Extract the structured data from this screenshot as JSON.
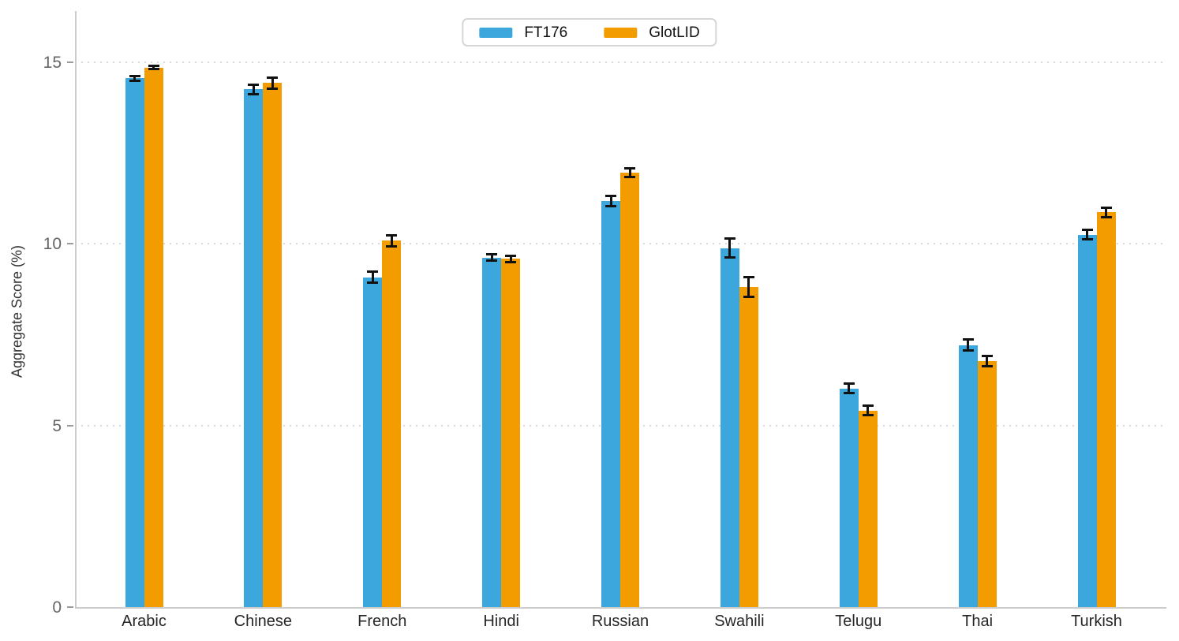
{
  "chart_data": {
    "type": "bar",
    "title": "",
    "categories": [
      "Arabic",
      "Chinese",
      "French",
      "Hindi",
      "Russian",
      "Swahili",
      "Telugu",
      "Thai",
      "Turkish"
    ],
    "series": [
      {
        "name": "FT176",
        "color": "#3CA7DC",
        "values": [
          14.55,
          14.25,
          9.08,
          9.62,
          11.18,
          9.88,
          6.02,
          7.21,
          10.25
        ],
        "errors": [
          0.06,
          0.13,
          0.16,
          0.09,
          0.14,
          0.26,
          0.13,
          0.15,
          0.13
        ]
      },
      {
        "name": "GlotLID",
        "color": "#F39C00",
        "values": [
          14.85,
          14.42,
          10.08,
          9.58,
          11.95,
          8.8,
          5.41,
          6.77,
          10.86
        ],
        "errors": [
          0.05,
          0.15,
          0.15,
          0.08,
          0.12,
          0.27,
          0.13,
          0.14,
          0.13
        ]
      }
    ],
    "xlabel": "",
    "ylabel": "Aggregate Score (%)",
    "ylim": [
      0,
      16.4
    ],
    "yticks": [
      0,
      5,
      10,
      15
    ],
    "grid": "horizontal-dotted",
    "legend_position": "top-center",
    "error_bar_color": "#111111",
    "grid_color": "#d9d9d9",
    "axis_color": "#cccccc",
    "tick_label_color": "#666666",
    "category_label_color": "#262626"
  }
}
